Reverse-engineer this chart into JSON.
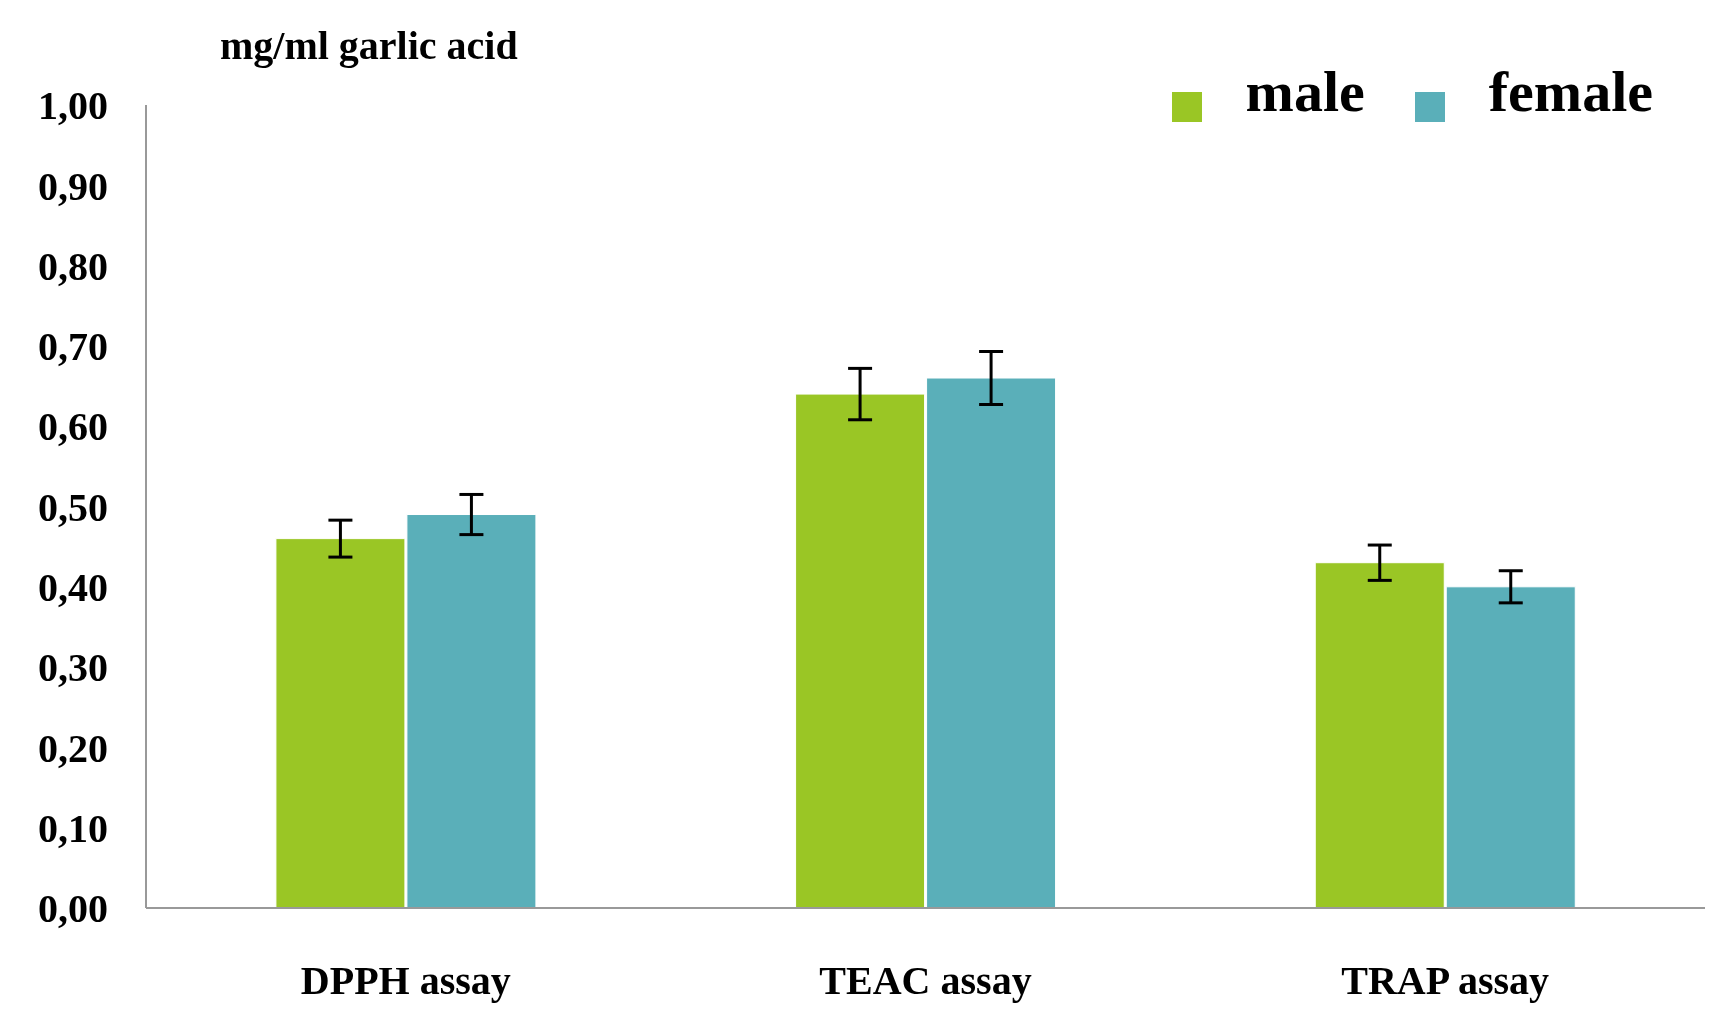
{
  "chart_data": {
    "type": "bar",
    "ylabel": "mg/ml garlic acid",
    "categories": [
      "DPPH assay",
      "TEAC assay",
      "TRAP assay"
    ],
    "series": [
      {
        "name": "male",
        "color": "#9ac625",
        "values": [
          0.46,
          0.64,
          0.43
        ],
        "errors": [
          0.023,
          0.032,
          0.022
        ]
      },
      {
        "name": "female",
        "color": "#5aafb9",
        "values": [
          0.49,
          0.66,
          0.4
        ],
        "errors": [
          0.025,
          0.033,
          0.02
        ]
      }
    ],
    "ylim": [
      0,
      1
    ],
    "yticks": [
      {
        "value": 0,
        "label": "0,00"
      },
      {
        "value": 0.1,
        "label": "0,10"
      },
      {
        "value": 0.2,
        "label": "0,20"
      },
      {
        "value": 0.3,
        "label": "0,30"
      },
      {
        "value": 0.4,
        "label": "0,40"
      },
      {
        "value": 0.5,
        "label": "0,50"
      },
      {
        "value": 0.6,
        "label": "0,60"
      },
      {
        "value": 0.7,
        "label": "0,70"
      },
      {
        "value": 0.8,
        "label": "0,80"
      },
      {
        "value": 0.9,
        "label": "0,90"
      },
      {
        "value": 1,
        "label": "1,00"
      }
    ],
    "grid": false,
    "legend": "top right"
  }
}
